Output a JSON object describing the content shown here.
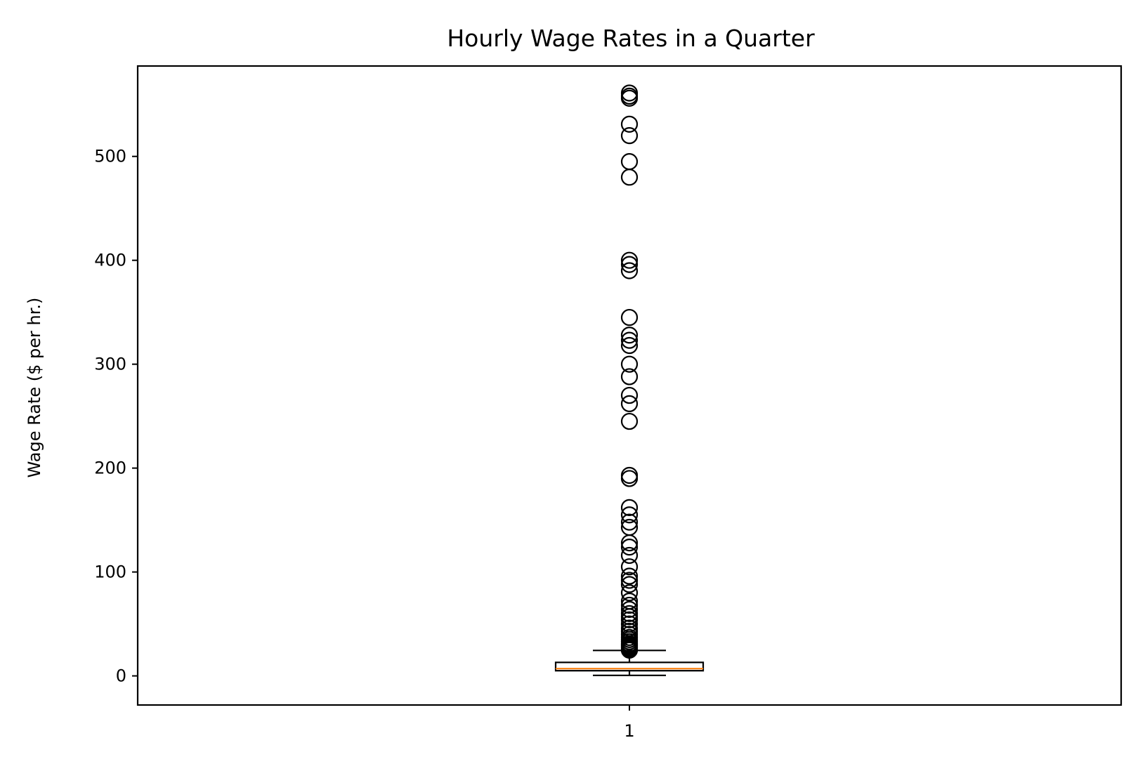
{
  "chart_data": {
    "type": "box",
    "title": "Hourly Wage Rates in a Quarter",
    "xlabel": "",
    "ylabel": "Wage Rate ($ per hr.)",
    "categories": [
      "1"
    ],
    "ylim": [
      -28,
      587
    ],
    "yticks": [
      0,
      100,
      200,
      300,
      400,
      500
    ],
    "ytick_labels": [
      "0",
      "100",
      "200",
      "300",
      "400",
      "500"
    ],
    "grid": false,
    "boxes": [
      {
        "category": "1",
        "whisker_low": 0.5,
        "q1": 5,
        "median": 7,
        "q3": 13,
        "whisker_high": 24.5,
        "outliers": [
          561,
          558,
          556,
          531,
          520,
          495,
          480,
          400,
          396,
          390,
          345,
          328,
          323,
          318,
          300,
          288,
          270,
          262,
          245,
          193,
          190,
          162,
          155,
          148,
          143,
          128,
          124,
          116,
          105,
          96,
          92,
          88,
          80,
          72,
          68,
          64,
          60,
          57,
          54,
          50,
          46,
          43,
          40,
          37,
          35,
          33,
          31,
          30,
          29,
          28,
          27,
          26,
          25,
          24.8
        ]
      }
    ],
    "colors": {
      "box": "#000000",
      "median": "#ff7f0e",
      "outlier_edge": "#000000",
      "axes": "#000000"
    }
  }
}
